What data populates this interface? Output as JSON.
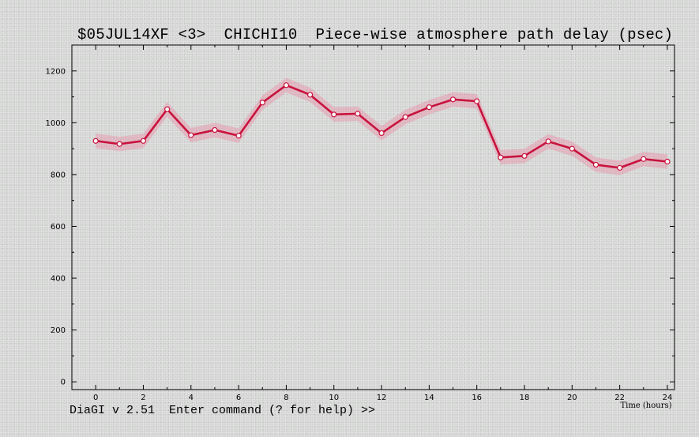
{
  "window": {
    "title": "$05JUL14XF <3>  CHICHI10  Piece-wise atmosphere path delay (psec)",
    "command_prompt": "DiaGI v 2.51  Enter command (? for help) >>"
  },
  "chart_data": {
    "type": "line",
    "title": "$05JUL14XF <3>  CHICHI10  Piece-wise atmosphere path delay (psec)",
    "xlabel": "Time (hours)",
    "ylabel": "",
    "xlim": [
      -1,
      24.3
    ],
    "ylim": [
      -30,
      1300
    ],
    "xticks": [
      0,
      2,
      4,
      6,
      8,
      10,
      12,
      14,
      16,
      18,
      20,
      22,
      24
    ],
    "yticks": [
      0,
      200,
      400,
      600,
      800,
      1000,
      1200
    ],
    "grid": false,
    "line_color": "#c8123c",
    "band_color": "#e890a8",
    "band_halfwidth": 28,
    "series": [
      {
        "x": [
          0,
          1,
          2,
          3,
          4,
          5,
          6,
          7,
          8,
          9,
          10,
          11,
          12,
          13,
          14,
          15,
          16,
          17,
          18,
          19,
          20,
          21,
          22,
          23,
          24
        ],
        "values": [
          930,
          918,
          930,
          1052,
          952,
          972,
          950,
          1078,
          1145,
          1108,
          1032,
          1035,
          960,
          1022,
          1060,
          1090,
          1083,
          866,
          872,
          928,
          900,
          838,
          826,
          860,
          850
        ]
      }
    ]
  }
}
